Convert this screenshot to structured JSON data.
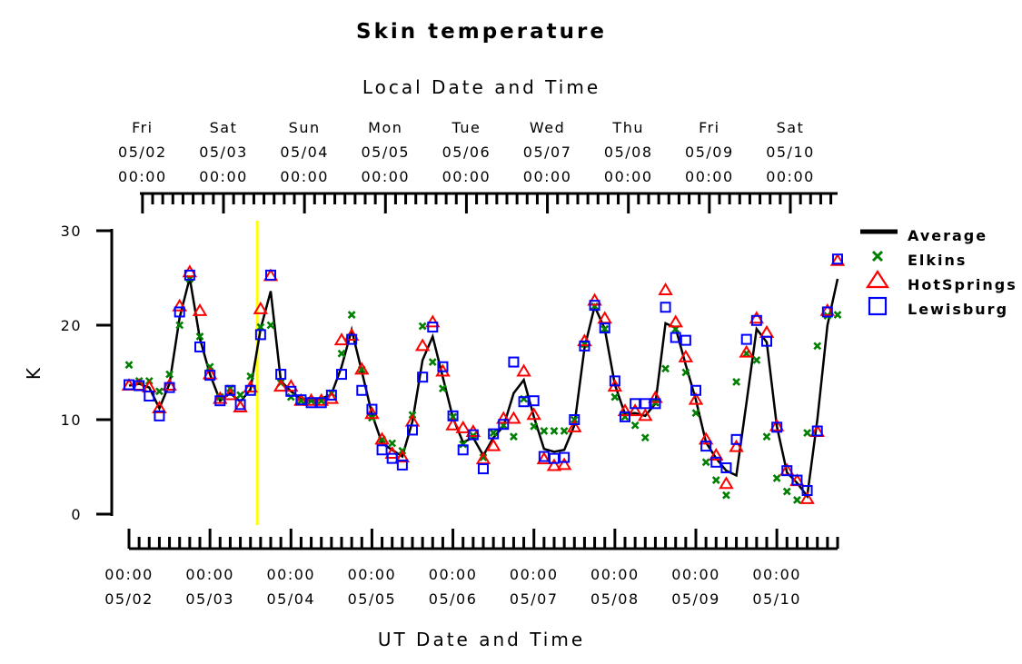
{
  "chart_data": {
    "type": "line",
    "title": "Skin temperature",
    "top_axis_title": "Local Date and Time",
    "xlabel": "UT Date and Time",
    "ylabel": "K",
    "ylim": [
      0,
      30
    ],
    "yticks": [
      0,
      10,
      20,
      30
    ],
    "xlim_ut_hours": [
      0,
      210
    ],
    "local_offset_hours": -4,
    "marker_time_ut_hours": 38,
    "marker_color": "#ffff00",
    "x_ticks_bottom": [
      {
        "time": "00:00",
        "date": "05/02"
      },
      {
        "time": "00:00",
        "date": "05/03"
      },
      {
        "time": "00:00",
        "date": "05/04"
      },
      {
        "time": "00:00",
        "date": "05/05"
      },
      {
        "time": "00:00",
        "date": "05/06"
      },
      {
        "time": "00:00",
        "date": "05/07"
      },
      {
        "time": "00:00",
        "date": "05/08"
      },
      {
        "time": "00:00",
        "date": "05/09"
      },
      {
        "time": "00:00",
        "date": "05/10"
      }
    ],
    "x_ticks_top": [
      {
        "day": "Fri",
        "date": "05/02",
        "time": "00:00"
      },
      {
        "day": "Sat",
        "date": "05/03",
        "time": "00:00"
      },
      {
        "day": "Sun",
        "date": "05/04",
        "time": "00:00"
      },
      {
        "day": "Mon",
        "date": "05/05",
        "time": "00:00"
      },
      {
        "day": "Tue",
        "date": "05/06",
        "time": "00:00"
      },
      {
        "day": "Wed",
        "date": "05/07",
        "time": "00:00"
      },
      {
        "day": "Thu",
        "date": "05/08",
        "time": "00:00"
      },
      {
        "day": "Fri",
        "date": "05/09",
        "time": "00:00"
      },
      {
        "day": "Sat",
        "date": "05/10",
        "time": "00:00"
      }
    ],
    "x_ut_hours": [
      0,
      3,
      6,
      9,
      12,
      15,
      18,
      21,
      24,
      27,
      30,
      33,
      36,
      39,
      42,
      45,
      48,
      51,
      54,
      57,
      60,
      63,
      66,
      69,
      72,
      75,
      78,
      81,
      84,
      87,
      90,
      93,
      96,
      99,
      102,
      105,
      108,
      111,
      114,
      117,
      120,
      123,
      126,
      129,
      132,
      135,
      138,
      141,
      144,
      147,
      150,
      153,
      156,
      159,
      162,
      165,
      168,
      171,
      174,
      177,
      180,
      183,
      186,
      189,
      192,
      195,
      198,
      201,
      204,
      207,
      210
    ],
    "series": [
      {
        "name": "Average",
        "type": "line",
        "color": "#000000",
        "values": [
          13.6,
          13.8,
          13.4,
          11.2,
          13.8,
          20.8,
          25.0,
          18.6,
          14.8,
          12.0,
          12.8,
          11.9,
          13.2,
          19.6,
          23.6,
          14.1,
          13.0,
          12.2,
          12.0,
          12.2,
          12.7,
          15.6,
          19.5,
          15.1,
          10.6,
          7.5,
          6.8,
          6.1,
          9.8,
          16.3,
          18.8,
          14.5,
          10.2,
          7.6,
          8.1,
          6.2,
          8.1,
          9.3,
          12.8,
          14.2,
          10.3,
          6.9,
          6.6,
          6.8,
          9.4,
          17.6,
          22.0,
          19.6,
          13.7,
          10.6,
          10.7,
          10.4,
          11.7,
          20.2,
          19.7,
          15.8,
          12.1,
          7.6,
          5.9,
          4.6,
          4.1,
          11.8,
          19.6,
          18.2,
          9.3,
          4.4,
          3.3,
          1.9,
          10.0,
          20.0,
          24.9
        ]
      },
      {
        "name": "Elkins",
        "type": "scatter",
        "marker": "x",
        "color": "#008000",
        "values": [
          15.8,
          14.1,
          14.1,
          13.0,
          14.8,
          20.0,
          24.9,
          18.8,
          15.6,
          12.4,
          13.3,
          12.6,
          14.6,
          19.8,
          20.0,
          13.9,
          12.4,
          12.0,
          12.0,
          12.0,
          12.8,
          17.0,
          21.1,
          15.3,
          10.2,
          7.9,
          7.5,
          6.7,
          10.5,
          19.9,
          16.1,
          13.3,
          10.3,
          7.4,
          8.3,
          6.0,
          8.6,
          9.4,
          8.2,
          12.2,
          9.3,
          8.8,
          8.8,
          8.8,
          10.0,
          18.0,
          22.0,
          19.6,
          12.4,
          10.3,
          9.4,
          8.1,
          11.8,
          15.4,
          19.6,
          15.0,
          10.7,
          5.5,
          3.6,
          2.0,
          14.0,
          17.0,
          16.3,
          8.2,
          3.8,
          2.4,
          1.5,
          8.6,
          17.8,
          21.0,
          21.1
        ]
      },
      {
        "name": "HotSprings",
        "type": "scatter",
        "marker": "triangle",
        "color": "#ff0000",
        "values": [
          13.6,
          13.6,
          13.4,
          11.2,
          13.6,
          22.0,
          25.6,
          21.5,
          14.8,
          12.2,
          12.6,
          11.3,
          13.4,
          21.7,
          25.2,
          13.5,
          13.5,
          12.0,
          12.0,
          12.0,
          12.2,
          18.4,
          18.9,
          15.3,
          10.6,
          7.9,
          6.4,
          6.0,
          9.8,
          17.8,
          20.3,
          15.1,
          9.4,
          9.1,
          8.7,
          5.8,
          7.2,
          10.1,
          10.1,
          15.1,
          10.5,
          5.8,
          5.1,
          5.2,
          9.2,
          18.3,
          22.6,
          20.7,
          13.5,
          10.9,
          10.9,
          10.4,
          12.3,
          23.7,
          20.3,
          16.6,
          12.1,
          7.9,
          6.2,
          3.2,
          7.1,
          17.1,
          20.7,
          19.2,
          9.3,
          4.6,
          3.5,
          1.6,
          8.7,
          21.5,
          26.8
        ]
      },
      {
        "name": "Lewisburg",
        "type": "scatter",
        "marker": "square",
        "color": "#0000ff",
        "values": [
          13.7,
          13.6,
          12.5,
          10.4,
          13.4,
          21.4,
          25.3,
          17.7,
          14.7,
          12.0,
          13.1,
          11.6,
          13.1,
          19.0,
          25.3,
          14.8,
          13.0,
          12.1,
          11.8,
          11.8,
          12.6,
          14.8,
          18.5,
          13.1,
          11.1,
          6.8,
          5.9,
          5.2,
          8.9,
          14.5,
          19.8,
          15.6,
          10.4,
          6.8,
          8.4,
          4.8,
          8.5,
          9.5,
          16.1,
          11.9,
          12.0,
          6.1,
          5.9,
          6.0,
          10.0,
          17.8,
          22.1,
          19.7,
          14.1,
          10.3,
          11.7,
          11.7,
          11.7,
          21.9,
          18.7,
          18.4,
          13.1,
          7.2,
          5.5,
          4.9,
          7.9,
          18.5,
          20.5,
          18.3,
          9.2,
          4.6,
          3.6,
          2.5,
          8.8,
          21.4,
          27.0
        ]
      }
    ],
    "legend_position": "right",
    "grid": false
  }
}
